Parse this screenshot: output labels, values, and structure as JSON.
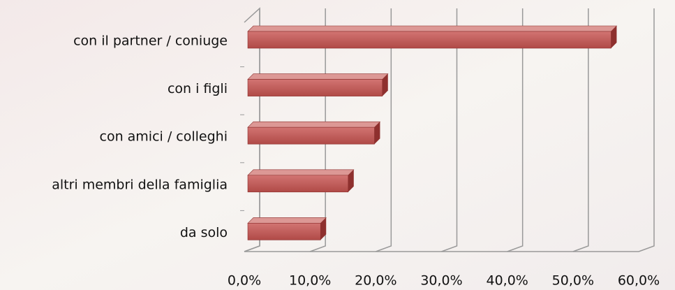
{
  "chart_data": {
    "type": "bar",
    "orientation": "horizontal",
    "categories": [
      "con il partner / coniuge",
      "con i figli",
      "con amici / colleghi",
      "altri membri della famiglia",
      "da solo"
    ],
    "values": [
      55.8,
      21,
      19.8,
      15.8,
      11.6
    ],
    "color": "#c0504d",
    "xlim": [
      0,
      60
    ],
    "xticks": [
      {
        "value": 0,
        "label": "0,0%"
      },
      {
        "value": 10,
        "label": "10,0%"
      },
      {
        "value": 20,
        "label": "20,0%"
      },
      {
        "value": 30,
        "label": "30,0%"
      },
      {
        "value": 40,
        "label": "40,0%"
      },
      {
        "value": 50,
        "label": "50,0%"
      },
      {
        "value": 60,
        "label": "60,0%"
      }
    ],
    "grid": true
  }
}
